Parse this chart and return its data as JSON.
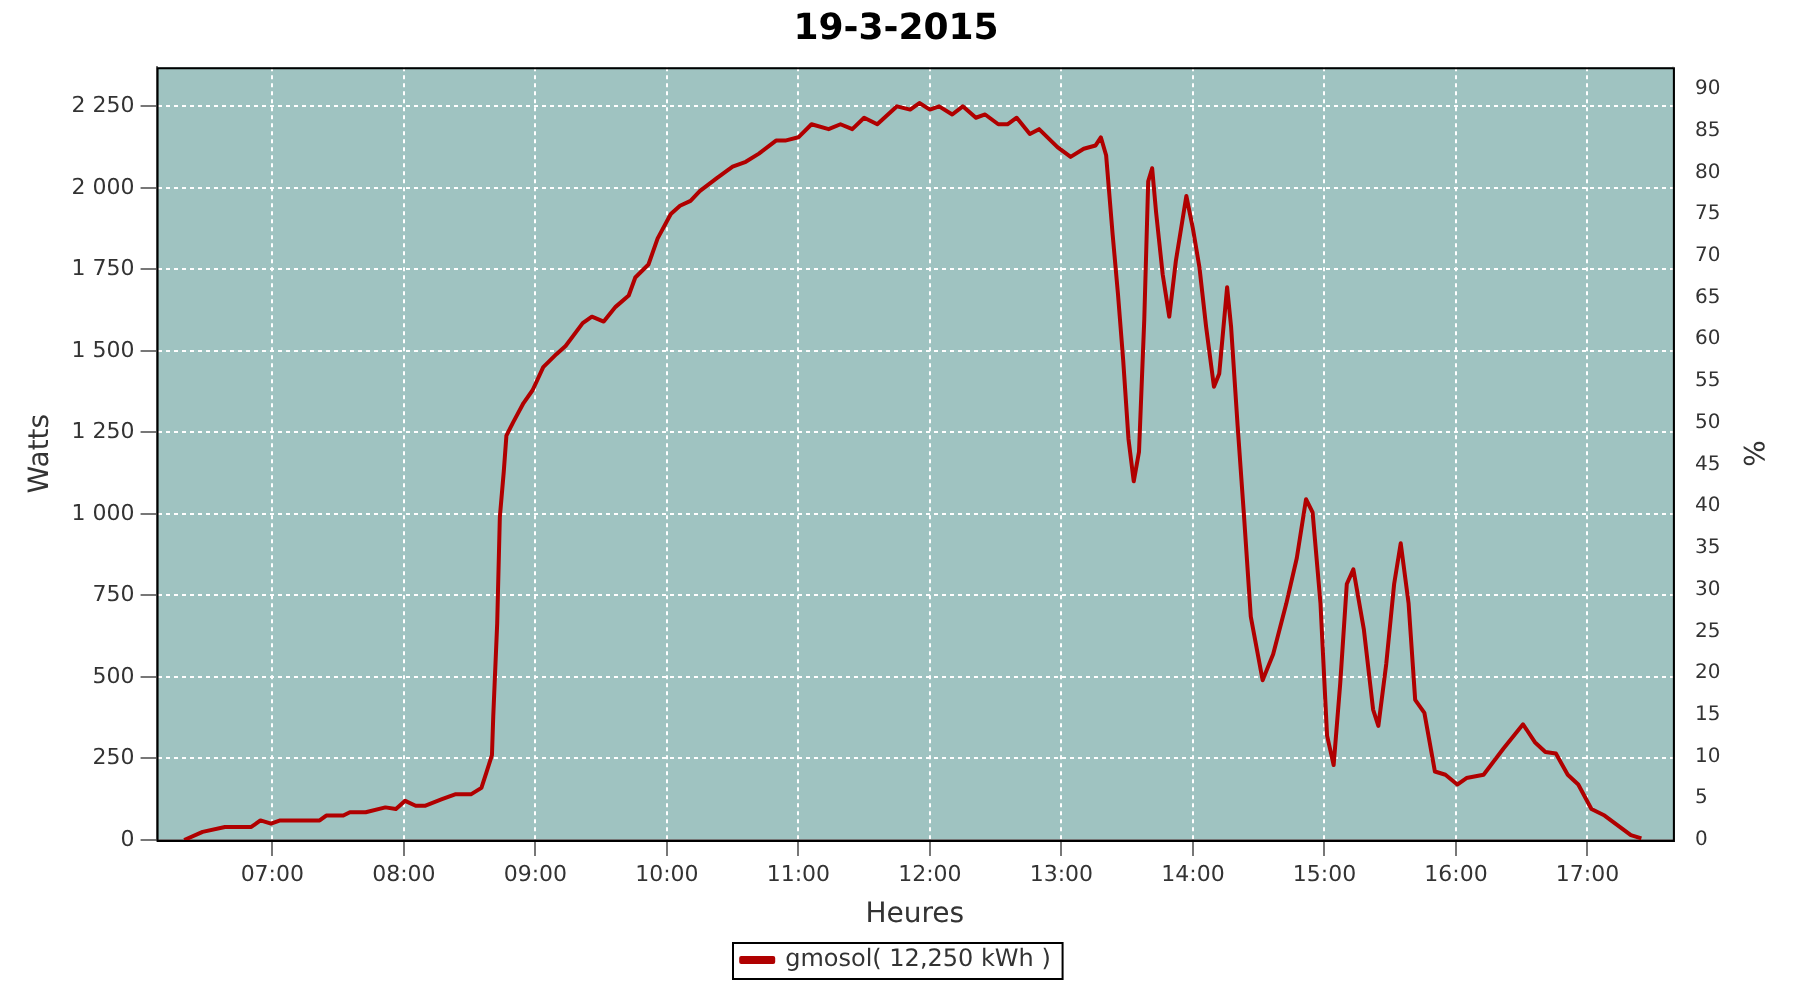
{
  "chart_data": {
    "type": "line",
    "title": "19-3-2015",
    "xlabel": "Heures",
    "ylabel": "Watts",
    "y2label": "%",
    "x": [
      6.33,
      6.47,
      6.64,
      6.84,
      6.91,
      6.99,
      7.06,
      7.36,
      7.41,
      7.54,
      7.59,
      7.71,
      7.86,
      7.94,
      8.01,
      8.09,
      8.16,
      8.29,
      8.39,
      8.51,
      8.59,
      8.63,
      8.67,
      8.68,
      8.71,
      8.73,
      8.76,
      8.78,
      8.83,
      8.91,
      8.98,
      9.06,
      9.16,
      9.23,
      9.36,
      9.43,
      9.52,
      9.61,
      9.71,
      9.76,
      9.86,
      9.93,
      10.03,
      10.1,
      10.18,
      10.25,
      10.38,
      10.5,
      10.6,
      10.7,
      10.83,
      10.9,
      11.0,
      11.1,
      11.23,
      11.32,
      11.41,
      11.5,
      11.6,
      11.75,
      11.85,
      11.92,
      12.0,
      12.07,
      12.17,
      12.25,
      12.35,
      12.42,
      12.52,
      12.59,
      12.66,
      12.76,
      12.83,
      12.97,
      13.07,
      13.17,
      13.26,
      13.3,
      13.34,
      13.39,
      13.43,
      13.47,
      13.51,
      13.55,
      13.59,
      13.63,
      13.66,
      13.69,
      13.72,
      13.77,
      13.82,
      13.87,
      13.95,
      14.0,
      14.05,
      14.1,
      14.16,
      14.2,
      14.26,
      14.29,
      14.34,
      14.39,
      14.44,
      14.53,
      14.61,
      14.71,
      14.79,
      14.86,
      14.91,
      14.97,
      15.02,
      15.07,
      15.12,
      15.17,
      15.22,
      15.3,
      15.37,
      15.41,
      15.47,
      15.53,
      15.58,
      15.64,
      15.69,
      15.76,
      15.84,
      15.92,
      16.01,
      16.08,
      16.21,
      16.36,
      16.51,
      16.6,
      16.68,
      16.76,
      16.85,
      16.93,
      17.03,
      17.13,
      17.23,
      17.33,
      17.41
    ],
    "series": [
      {
        "name": "gmosol( 12,250 kWh )",
        "color": "#b00000",
        "values": [
          0,
          25,
          40,
          40,
          60,
          50,
          60,
          60,
          75,
          75,
          85,
          85,
          100,
          95,
          120,
          105,
          105,
          125,
          140,
          140,
          160,
          210,
          260,
          380,
          665,
          990,
          1130,
          1240,
          1280,
          1340,
          1380,
          1450,
          1490,
          1515,
          1585,
          1605,
          1590,
          1635,
          1670,
          1725,
          1765,
          1845,
          1920,
          1945,
          1960,
          1990,
          2030,
          2065,
          2080,
          2105,
          2145,
          2145,
          2155,
          2195,
          2180,
          2195,
          2180,
          2215,
          2195,
          2250,
          2240,
          2260,
          2240,
          2250,
          2225,
          2250,
          2215,
          2225,
          2195,
          2195,
          2215,
          2165,
          2180,
          2125,
          2095,
          2120,
          2130,
          2155,
          2100,
          1855,
          1675,
          1470,
          1230,
          1100,
          1190,
          1595,
          2020,
          2060,
          1925,
          1735,
          1605,
          1775,
          1975,
          1875,
          1755,
          1575,
          1390,
          1430,
          1695,
          1575,
          1270,
          985,
          685,
          490,
          570,
          725,
          865,
          1045,
          1005,
          725,
          320,
          230,
          480,
          785,
          830,
          645,
          400,
          350,
          540,
          785,
          910,
          725,
          430,
          390,
          210,
          200,
          170,
          190,
          200,
          280,
          355,
          300,
          270,
          265,
          200,
          170,
          95,
          75,
          45,
          15,
          5
        ]
      }
    ],
    "xlim": [
      6.12,
      17.65
    ],
    "xticks": [
      {
        "value": 7,
        "label": "07:00"
      },
      {
        "value": 8,
        "label": "08:00"
      },
      {
        "value": 9,
        "label": "09:00"
      },
      {
        "value": 10,
        "label": "10:00"
      },
      {
        "value": 11,
        "label": "11:00"
      },
      {
        "value": 12,
        "label": "12:00"
      },
      {
        "value": 13,
        "label": "13:00"
      },
      {
        "value": 14,
        "label": "14:00"
      },
      {
        "value": 15,
        "label": "15:00"
      },
      {
        "value": 16,
        "label": "16:00"
      },
      {
        "value": 17,
        "label": "17:00"
      }
    ],
    "ylim": [
      0,
      2370
    ],
    "yticks": [
      0,
      250,
      500,
      750,
      {
        "value": 1000,
        "label": "1 000"
      },
      {
        "value": 1250,
        "label": "1 250"
      },
      {
        "value": 1500,
        "label": "1 500"
      },
      {
        "value": 1750,
        "label": "1 750"
      },
      {
        "value": 2000,
        "label": "2 000"
      },
      {
        "value": 2250,
        "label": "2 250"
      }
    ],
    "y2lim": [
      0,
      92.6
    ],
    "y2ticks": [
      0,
      5,
      10,
      15,
      20,
      25,
      30,
      35,
      40,
      45,
      50,
      55,
      60,
      65,
      70,
      75,
      80,
      85,
      90
    ],
    "grid": true,
    "legend": "bottom",
    "marker": "none",
    "line_style": "solid"
  }
}
